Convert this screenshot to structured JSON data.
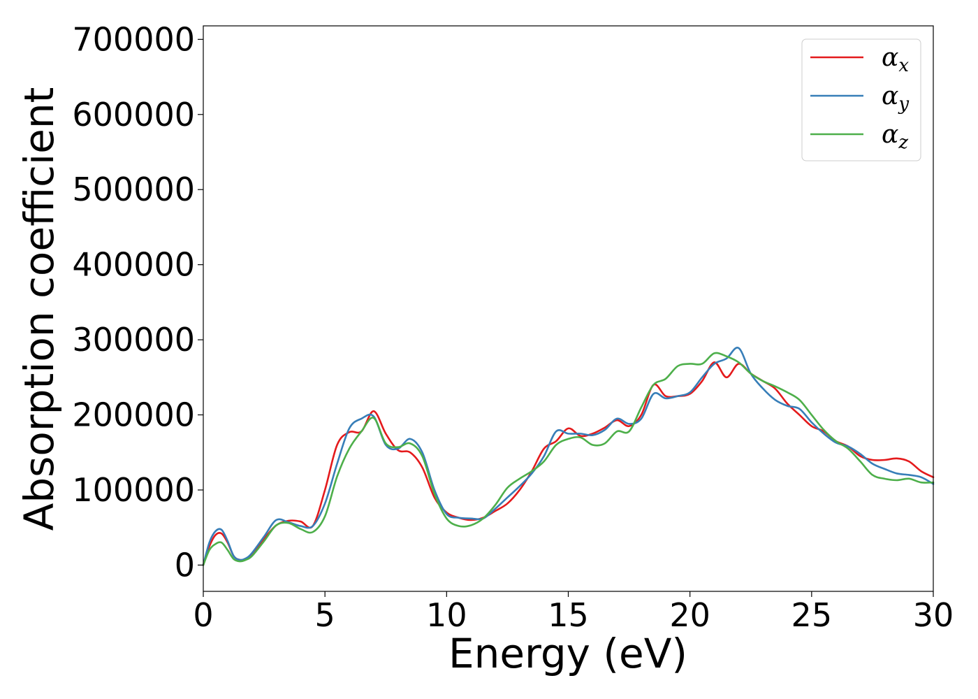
{
  "chart_data": {
    "type": "line",
    "title": "",
    "xlabel": "Energy (eV)",
    "ylabel": "Absorption coefficient",
    "xlim": [
      0,
      30
    ],
    "ylim": [
      -35000,
      718000
    ],
    "x_ticks": [
      0,
      5,
      10,
      15,
      20,
      25,
      30
    ],
    "y_ticks": [
      0,
      100000,
      200000,
      300000,
      400000,
      500000,
      600000,
      700000
    ],
    "grid": false,
    "legend_position": "top-right",
    "x": [
      0,
      0.25,
      0.5,
      0.75,
      1.0,
      1.25,
      1.5,
      1.75,
      2.0,
      2.5,
      3.0,
      3.5,
      4.0,
      4.5,
      5.0,
      5.5,
      6.0,
      6.5,
      7.0,
      7.5,
      8.0,
      8.5,
      9.0,
      9.5,
      10.0,
      10.5,
      11.0,
      11.5,
      12.0,
      12.5,
      13.0,
      13.5,
      14.0,
      14.5,
      15.0,
      15.5,
      16.0,
      16.5,
      17.0,
      17.5,
      18.0,
      18.5,
      19.0,
      19.5,
      20.0,
      20.5,
      21.0,
      21.5,
      22.0,
      22.5,
      23.0,
      23.5,
      24.0,
      24.5,
      25.0,
      25.5,
      26.0,
      26.5,
      27.0,
      27.5,
      28.0,
      28.5,
      29.0,
      29.5,
      30.0
    ],
    "series": [
      {
        "name": "α",
        "subscript": "x",
        "color": "#e41a1c",
        "values": [
          0,
          25000,
          40000,
          42000,
          30000,
          12000,
          7000,
          8000,
          15000,
          35000,
          53000,
          59000,
          58000,
          52000,
          100000,
          160000,
          177000,
          178000,
          205000,
          175000,
          153000,
          150000,
          130000,
          90000,
          70000,
          63000,
          60000,
          63000,
          72000,
          82000,
          100000,
          125000,
          155000,
          165000,
          182000,
          172000,
          175000,
          183000,
          193000,
          185000,
          200000,
          240000,
          225000,
          225000,
          228000,
          245000,
          270000,
          250000,
          268000,
          255000,
          245000,
          235000,
          215000,
          200000,
          185000,
          178000,
          165000,
          158000,
          145000,
          140000,
          140000,
          142000,
          138000,
          125000,
          117000
        ]
      },
      {
        "name": "α",
        "subscript": "y",
        "color": "#377eb8",
        "values": [
          0,
          30000,
          45000,
          47000,
          32000,
          12000,
          7000,
          9000,
          16000,
          38000,
          60000,
          57000,
          52000,
          52000,
          82000,
          135000,
          182000,
          195000,
          198000,
          160000,
          155000,
          168000,
          150000,
          100000,
          68000,
          63000,
          62000,
          62000,
          75000,
          90000,
          105000,
          122000,
          145000,
          178000,
          175000,
          175000,
          173000,
          180000,
          195000,
          188000,
          195000,
          228000,
          222000,
          225000,
          230000,
          250000,
          268000,
          275000,
          289000,
          255000,
          235000,
          220000,
          212000,
          208000,
          190000,
          175000,
          163000,
          158000,
          148000,
          135000,
          128000,
          122000,
          120000,
          117000,
          108000
        ]
      },
      {
        "name": "α",
        "subscript": "z",
        "color": "#4daf4a",
        "values": [
          0,
          20000,
          28000,
          30000,
          20000,
          8000,
          5000,
          7000,
          12000,
          32000,
          53000,
          56000,
          48000,
          44000,
          65000,
          118000,
          155000,
          178000,
          196000,
          162000,
          157000,
          162000,
          145000,
          95000,
          62000,
          52000,
          53000,
          62000,
          80000,
          103000,
          115000,
          125000,
          138000,
          160000,
          168000,
          170000,
          160000,
          162000,
          178000,
          178000,
          210000,
          240000,
          248000,
          265000,
          268000,
          268000,
          282000,
          278000,
          270000,
          255000,
          245000,
          238000,
          230000,
          220000,
          200000,
          180000,
          165000,
          155000,
          138000,
          120000,
          115000,
          113000,
          115000,
          110000,
          110000
        ]
      }
    ]
  }
}
